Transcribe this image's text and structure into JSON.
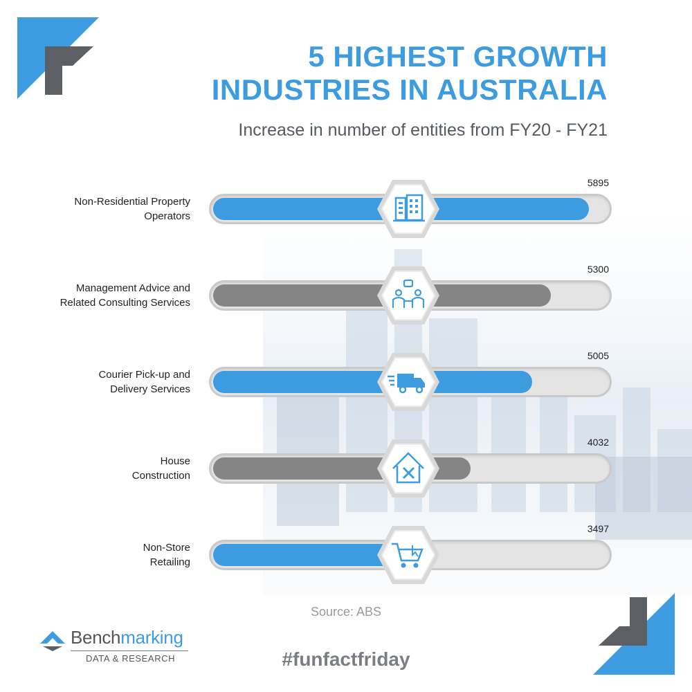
{
  "header": {
    "title_line1": "5 HIGHEST GROWTH",
    "title_line2": "INDUSTRIES IN AUSTRALIA",
    "subtitle": "Increase in number of entities from FY20 - FY21"
  },
  "colors": {
    "accent_blue": "#3d9be0",
    "bar_blue": "#3d9be0",
    "bar_gray": "#858585",
    "track": "#e4e4e4",
    "dark_gray": "#5c5f63"
  },
  "chart_data": {
    "type": "bar",
    "orientation": "horizontal",
    "title": "5 HIGHEST GROWTH INDUSTRIES IN AUSTRALIA",
    "subtitle": "Increase in number of entities from FY20 - FY21",
    "categories": [
      "Non-Residential Property\nOperators",
      "Management Advice and\nRelated Consulting Services",
      "Courier Pick-up and\nDelivery Services",
      "House\nConstruction",
      "Non-Store\nRetailing"
    ],
    "values": [
      5895,
      5300,
      5005,
      4032,
      3497
    ],
    "value_labels": [
      "5895",
      "5300",
      "5005",
      "4032",
      "3497"
    ],
    "bar_colors": [
      "#3d9be0",
      "#858585",
      "#3d9be0",
      "#858585",
      "#3d9be0"
    ],
    "icons": [
      "office-building-icon",
      "consulting-people-icon",
      "delivery-truck-icon",
      "house-construction-icon",
      "shopping-cart-icon"
    ],
    "xlim": [
      0,
      6250
    ],
    "grid": false,
    "legend": "none"
  },
  "footer": {
    "source": "Source: ABS",
    "logo_name_part1": "Bench",
    "logo_name_part2": "marking",
    "logo_sub": "DATA & RESEARCH",
    "hashtag": "#funfactfriday"
  }
}
